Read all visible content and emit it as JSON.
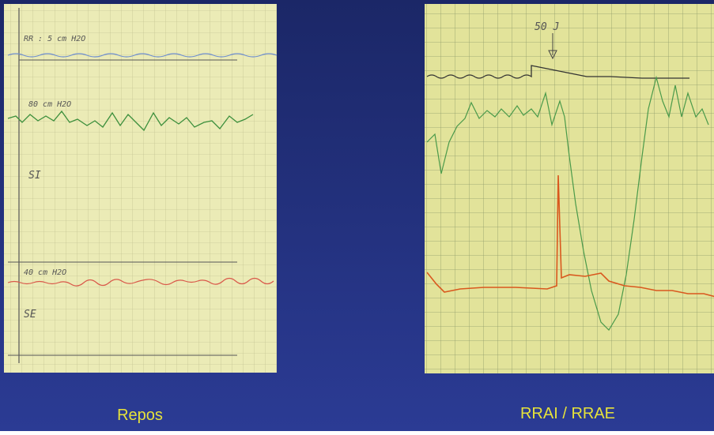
{
  "left_panel": {
    "caption": "Repos",
    "annotations": [
      "RR : 5 cm H2O",
      "80 cm H2O",
      "SI",
      "40 cm H2O",
      "SE"
    ]
  },
  "right_panel": {
    "caption": "RRAI / RRAE",
    "annotations": [
      "50 J"
    ]
  }
}
